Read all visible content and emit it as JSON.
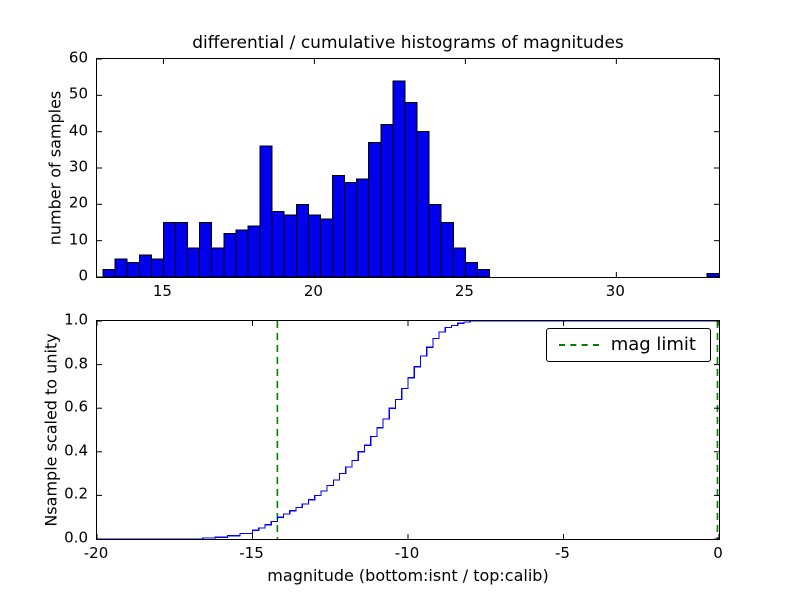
{
  "chart_data": [
    {
      "type": "bar",
      "role": "differential-histogram",
      "title": "differential / cumulative histograms of magnitudes",
      "ylabel": "number of samples",
      "xlim": [
        12.8,
        33.4
      ],
      "ylim": [
        0,
        60
      ],
      "xticks": [
        15,
        20,
        25,
        30
      ],
      "xticklabels": [
        "15",
        "20",
        "25",
        "30"
      ],
      "yticks": [
        0,
        10,
        20,
        30,
        40,
        50,
        60
      ],
      "yticklabels": [
        "0",
        "10",
        "20",
        "30",
        "40",
        "50",
        "60"
      ],
      "bin_width": 0.4,
      "bar_fill": "#0000ee",
      "bar_edge": "#000000",
      "bars": [
        {
          "x": 13.0,
          "count": 2
        },
        {
          "x": 13.4,
          "count": 5
        },
        {
          "x": 13.8,
          "count": 4
        },
        {
          "x": 14.2,
          "count": 6
        },
        {
          "x": 14.6,
          "count": 5
        },
        {
          "x": 15.0,
          "count": 15
        },
        {
          "x": 15.4,
          "count": 15
        },
        {
          "x": 15.8,
          "count": 8
        },
        {
          "x": 16.2,
          "count": 15
        },
        {
          "x": 16.6,
          "count": 8
        },
        {
          "x": 17.0,
          "count": 12
        },
        {
          "x": 17.4,
          "count": 13
        },
        {
          "x": 17.8,
          "count": 14
        },
        {
          "x": 18.2,
          "count": 36
        },
        {
          "x": 18.6,
          "count": 18
        },
        {
          "x": 19.0,
          "count": 17
        },
        {
          "x": 19.4,
          "count": 20
        },
        {
          "x": 19.8,
          "count": 17
        },
        {
          "x": 20.2,
          "count": 16
        },
        {
          "x": 20.6,
          "count": 28
        },
        {
          "x": 21.0,
          "count": 26
        },
        {
          "x": 21.4,
          "count": 27
        },
        {
          "x": 21.8,
          "count": 37
        },
        {
          "x": 22.2,
          "count": 42
        },
        {
          "x": 22.6,
          "count": 54
        },
        {
          "x": 23.0,
          "count": 48
        },
        {
          "x": 23.4,
          "count": 40
        },
        {
          "x": 23.8,
          "count": 20
        },
        {
          "x": 24.2,
          "count": 15
        },
        {
          "x": 24.6,
          "count": 8
        },
        {
          "x": 25.0,
          "count": 4
        },
        {
          "x": 25.4,
          "count": 2
        },
        {
          "x": 33.0,
          "count": 1
        }
      ]
    },
    {
      "type": "line",
      "role": "cumulative-histogram",
      "ylabel": "Nsample scaled to unity",
      "xlabel": "magnitude (bottom:isnt / top:calib)",
      "xlim": [
        -20,
        0
      ],
      "ylim": [
        0,
        1
      ],
      "xticks": [
        -20,
        -15,
        -10,
        -5,
        0
      ],
      "xticklabels": [
        "-20",
        "-15",
        "-10",
        "-5",
        "0"
      ],
      "yticks": [
        0,
        0.2,
        0.4,
        0.6,
        0.8,
        1.0
      ],
      "yticklabels": [
        "0.0",
        "0.2",
        "0.4",
        "0.6",
        "0.8",
        "1.0"
      ],
      "line_color": "#0000ff",
      "steps": [
        [
          -20.0,
          0
        ],
        [
          -16.8,
          0
        ],
        [
          -16.6,
          0.004
        ],
        [
          -16.2,
          0.008
        ],
        [
          -15.8,
          0.015
        ],
        [
          -15.4,
          0.025
        ],
        [
          -15.0,
          0.04
        ],
        [
          -14.8,
          0.05
        ],
        [
          -14.6,
          0.065
        ],
        [
          -14.4,
          0.08
        ],
        [
          -14.2,
          0.1
        ],
        [
          -14.0,
          0.115
        ],
        [
          -13.8,
          0.13
        ],
        [
          -13.6,
          0.145
        ],
        [
          -13.4,
          0.16
        ],
        [
          -13.2,
          0.18
        ],
        [
          -13.0,
          0.2
        ],
        [
          -12.8,
          0.22
        ],
        [
          -12.6,
          0.245
        ],
        [
          -12.4,
          0.27
        ],
        [
          -12.2,
          0.3
        ],
        [
          -12.0,
          0.33
        ],
        [
          -11.8,
          0.36
        ],
        [
          -11.6,
          0.4
        ],
        [
          -11.4,
          0.43
        ],
        [
          -11.2,
          0.47
        ],
        [
          -11.0,
          0.51
        ],
        [
          -10.8,
          0.55
        ],
        [
          -10.6,
          0.6
        ],
        [
          -10.4,
          0.64
        ],
        [
          -10.2,
          0.69
        ],
        [
          -10.0,
          0.74
        ],
        [
          -9.8,
          0.79
        ],
        [
          -9.6,
          0.84
        ],
        [
          -9.4,
          0.88
        ],
        [
          -9.2,
          0.92
        ],
        [
          -9.0,
          0.95
        ],
        [
          -8.8,
          0.97
        ],
        [
          -8.6,
          0.98
        ],
        [
          -8.4,
          0.99
        ],
        [
          -8.2,
          0.995
        ],
        [
          -8.0,
          1.0
        ],
        [
          0.0,
          1.0
        ]
      ],
      "vlines": [
        {
          "x": -14.2,
          "color": "#008000",
          "style": "dashed",
          "label": "mag limit"
        },
        {
          "x": -0.05,
          "color": "#008000",
          "style": "dashed",
          "label": ""
        }
      ],
      "legend": {
        "position": "upper right",
        "entries": [
          {
            "label": "mag limit",
            "color": "#008000",
            "style": "dashed"
          }
        ]
      }
    }
  ]
}
